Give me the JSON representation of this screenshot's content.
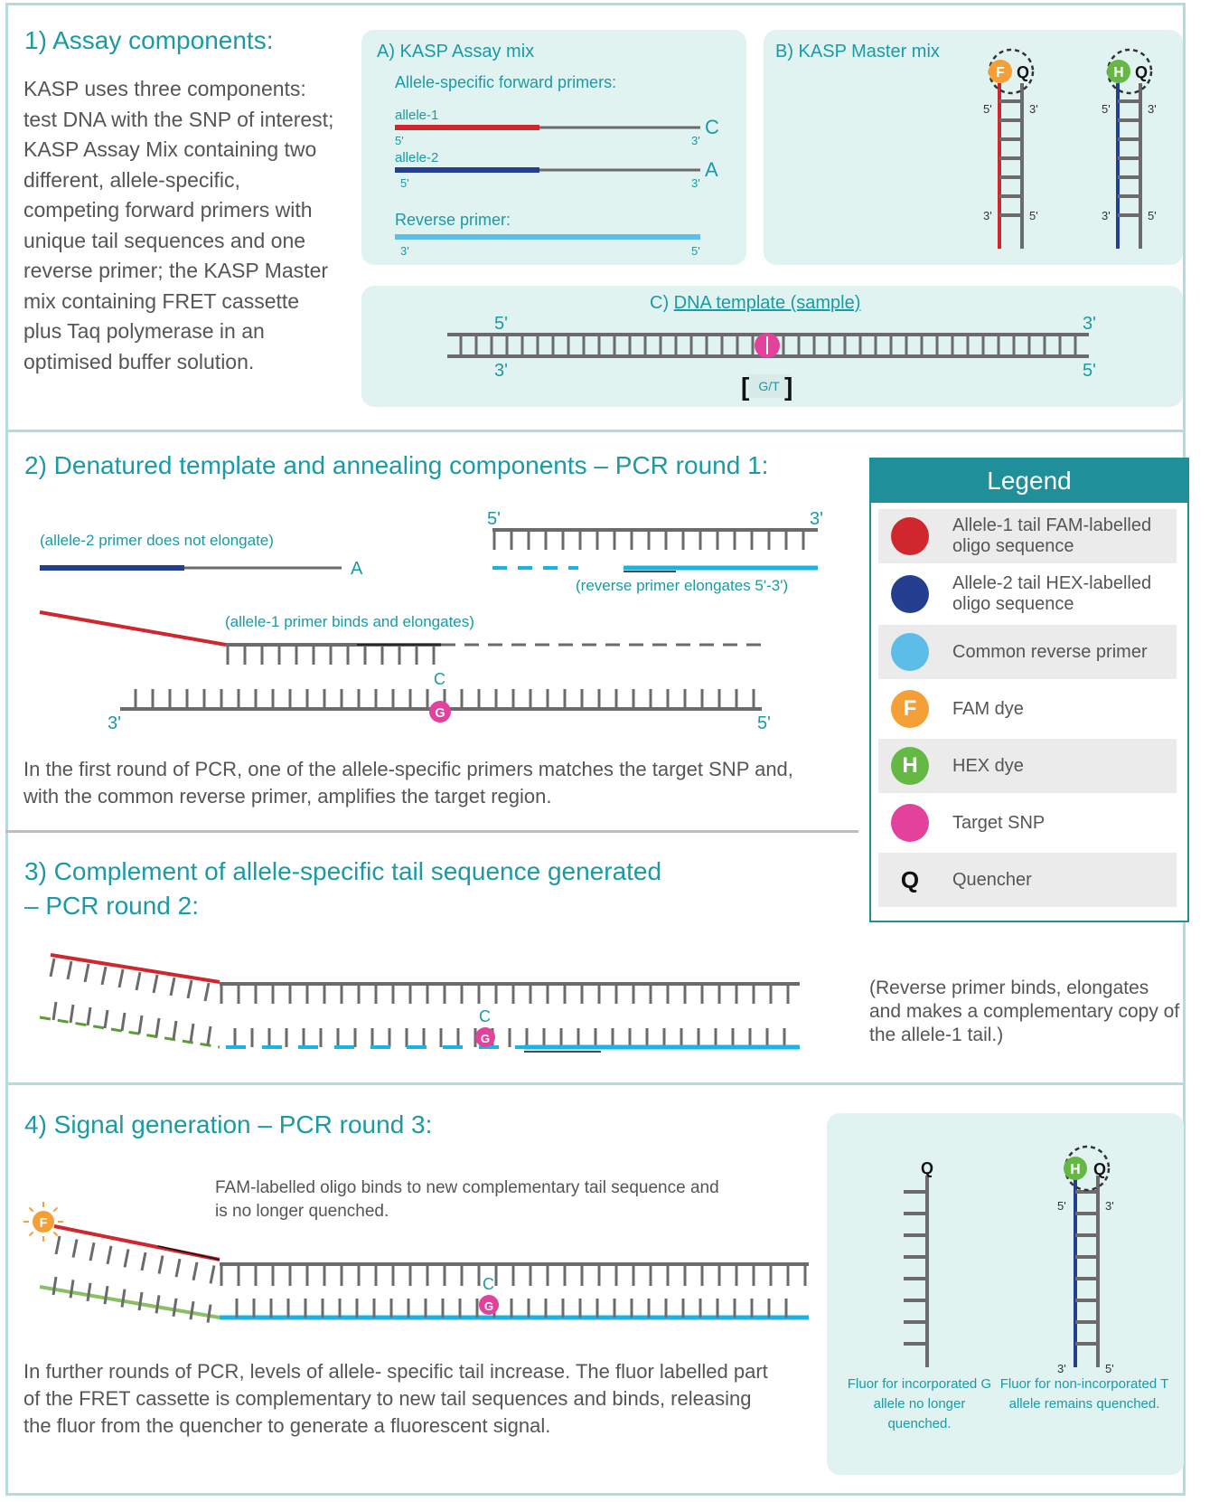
{
  "section1": {
    "heading": "1) Assay components:",
    "body": "KASP uses three components: test DNA with the SNP of interest; KASP Assay Mix containing two different, allele-specific, competing forward primers with unique tail sequences and one reverse primer; the KASP Master mix containing FRET cassette plus Taq polymerase in an optimised buffer solution.",
    "panel_a": {
      "title": "A) KASP Assay mix",
      "forward_label": "Allele-specific forward primers:",
      "allele1": "allele-1",
      "allele2": "allele-2",
      "allele1_base": "C",
      "allele2_base": "A",
      "reverse_label": "Reverse primer:"
    },
    "panel_b": {
      "title": "B) KASP Master mix"
    },
    "panel_c": {
      "prefix": "C) ",
      "title": "DNA template (sample)",
      "snp": "G/T"
    },
    "end5": "5'",
    "end3": "3'"
  },
  "section2": {
    "heading": "2) Denatured template and annealing components – PCR round 1:",
    "note_allele2": "(allele-2 primer does not elongate)",
    "allele2_base": "A",
    "note_reverse": "(reverse primer elongates 5'-3')",
    "note_allele1": "(allele-1 primer binds and elongates)",
    "base_c": "C",
    "snp_g": "G",
    "body": "In the first round of PCR, one of the allele-specific primers matches the target SNP and, with the common reverse primer, amplifies the target region."
  },
  "legend": {
    "title": "Legend",
    "items": [
      {
        "label": "Allele-1 tail FAM-labelled oligo sequence",
        "color": "#d0262d",
        "glyph": ""
      },
      {
        "label": "Allele-2 tail HEX-labelled oligo sequence",
        "color": "#243f8f",
        "glyph": ""
      },
      {
        "label": "Common reverse primer",
        "color": "#5bbde8",
        "glyph": ""
      },
      {
        "label": "FAM dye",
        "color": "#f5a037",
        "glyph": "F"
      },
      {
        "label": "HEX dye",
        "color": "#66b845",
        "glyph": "H"
      },
      {
        "label": "Target SNP",
        "color": "#e2419c",
        "glyph": ""
      },
      {
        "label": "Quencher",
        "color": "",
        "glyph": "Q"
      }
    ]
  },
  "section3": {
    "heading": "3) Complement of allele-specific tail sequence generated\n– PCR round 2:",
    "note": "(Reverse primer binds, elongates and makes a complementary copy of the allele-1 tail.)",
    "base_c": "C",
    "snp_g": "G"
  },
  "section4": {
    "heading": "4) Signal generation – PCR round 3:",
    "note": "FAM-labelled oligo binds to new complementary tail sequence and is no longer quenched.",
    "body": "In further rounds of PCR, levels of allele- specific tail increase. The fluor labelled part of the FRET cassette is complementary to new tail sequences and binds, releasing the fluor from the quencher to generate a fluorescent signal.",
    "base_c": "C",
    "snp_g": "G",
    "fluor_incorporated": "Fluor for incorporated G allele no longer quenched.",
    "fluor_non_incorporated": "Fluor for non-incorporated T allele remains quenched."
  },
  "glyphs": {
    "fam": "F",
    "hex": "H",
    "quencher": "Q"
  },
  "colors": {
    "teal": "#1a9aa5",
    "red": "#d0262d",
    "navy": "#243f8f",
    "cyan": "#19b3e6",
    "light_blue": "#5bbde8",
    "grey": "#6b6b6b",
    "magenta": "#e2419c",
    "orange": "#f5a037",
    "green": "#66b845",
    "panel": "#e1f3f1"
  }
}
